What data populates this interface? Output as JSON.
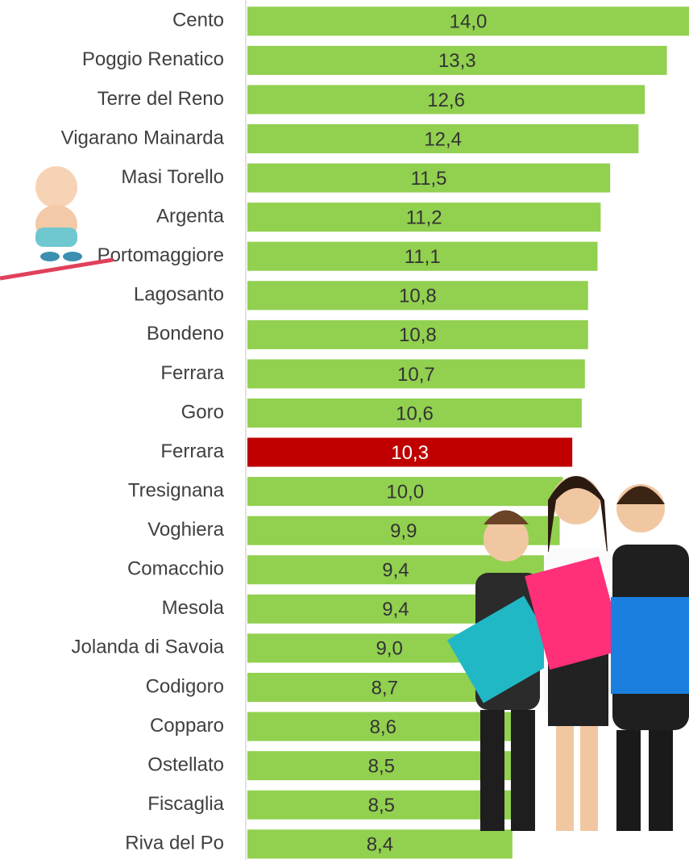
{
  "chart_data": {
    "type": "hbar",
    "categories": [
      "Cento",
      "Poggio Renatico",
      "Terre del Reno",
      "Vigarano Mainarda",
      "Masi Torello",
      "Argenta",
      "Portomaggiore",
      "Lagosanto",
      "Bondeno",
      "Ferrara",
      "Goro",
      "Ferrara",
      "Tresignana",
      "Voghiera",
      "Comacchio",
      "Mesola",
      "Jolanda di Savoia",
      "Codigoro",
      "Copparo",
      "Ostellato",
      "Fiscaglia",
      "Riva del Po"
    ],
    "values": [
      14.0,
      13.3,
      12.6,
      12.4,
      11.5,
      11.2,
      11.1,
      10.8,
      10.8,
      10.7,
      10.6,
      10.3,
      10.0,
      9.9,
      9.4,
      9.4,
      9.0,
      8.7,
      8.6,
      8.5,
      8.5,
      8.4
    ],
    "value_labels": [
      "14,0",
      "13,3",
      "12,6",
      "12,4",
      "11,5",
      "11,2",
      "11,1",
      "10,8",
      "10,8",
      "10,7",
      "10,6",
      "10,3",
      "10,0",
      "9,9",
      "9,4",
      "9,4",
      "9,0",
      "8,7",
      "8,6",
      "8,5",
      "8,5",
      "8,4"
    ],
    "colors": [
      "#92d050",
      "#92d050",
      "#92d050",
      "#92d050",
      "#92d050",
      "#92d050",
      "#92d050",
      "#92d050",
      "#92d050",
      "#92d050",
      "#92d050",
      "#c00000",
      "#92d050",
      "#92d050",
      "#92d050",
      "#92d050",
      "#92d050",
      "#92d050",
      "#92d050",
      "#92d050",
      "#92d050",
      "#92d050"
    ]
  }
}
